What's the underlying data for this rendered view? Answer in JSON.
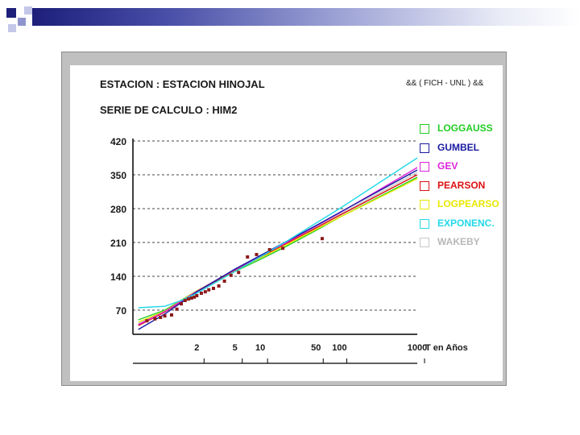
{
  "header": {
    "station": "ESTACION : ESTACION HINOJAL",
    "series": "SERIE DE CALCULO : HIM2",
    "credit": "&& ( FICH - UNL ) &&"
  },
  "colors": {
    "LOGGAUSS": "#22cc22",
    "GUMBEL": "#1a1aa0",
    "GEV": "#dd22dd",
    "PEARSON": "#dd1111",
    "LOGPEARSON": "#e8e800",
    "EXPONENC": "#22d8e8",
    "WAKEBY": "#c8c8c8",
    "points": "#8b1a1a"
  },
  "chart_data": {
    "type": "line",
    "xlabel": "T en Años",
    "ylabel": "",
    "x_scale": "gumbel-probability",
    "xlim": [
      1.01,
      1000
    ],
    "ylim": [
      20,
      420
    ],
    "yticks": [
      70,
      140,
      210,
      280,
      350,
      420
    ],
    "xticks": [
      2,
      5,
      10,
      50,
      100,
      1000
    ],
    "grid": "dashed-horizontal",
    "legend_position": "right",
    "series": [
      {
        "name": "LOGGAUSS",
        "x": [
          1.02,
          1.2,
          2,
          5,
          10,
          20,
          50,
          100,
          1000
        ],
        "values": [
          50,
          70,
          110,
          150,
          175,
          200,
          235,
          262,
          345
        ]
      },
      {
        "name": "GUMBEL",
        "x": [
          1.02,
          1.2,
          2,
          5,
          10,
          20,
          50,
          100,
          1000
        ],
        "values": [
          30,
          62,
          108,
          155,
          183,
          210,
          245,
          272,
          360
        ]
      },
      {
        "name": "GEV",
        "x": [
          1.02,
          1.2,
          2,
          5,
          10,
          20,
          50,
          100,
          1000
        ],
        "values": [
          40,
          67,
          109,
          154,
          182,
          208,
          244,
          271,
          365
        ]
      },
      {
        "name": "PEARSON",
        "x": [
          1.02,
          1.2,
          2,
          5,
          10,
          20,
          50,
          100,
          1000
        ],
        "values": [
          38,
          66,
          108,
          153,
          180,
          206,
          240,
          266,
          350
        ]
      },
      {
        "name": "LOGPEARSON",
        "x": [
          1.02,
          1.2,
          2,
          5,
          10,
          20,
          50,
          100,
          1000
        ],
        "values": [
          45,
          68,
          110,
          152,
          178,
          203,
          237,
          262,
          342
        ]
      },
      {
        "name": "EXPONENC.",
        "x": [
          1.02,
          1.2,
          1.5,
          2,
          5,
          10,
          20,
          50,
          100,
          1000
        ],
        "values": [
          75,
          78,
          90,
          105,
          150,
          180,
          210,
          250,
          280,
          385
        ]
      },
      {
        "name": "WAKEBY",
        "x": [
          1.02,
          1.2,
          2,
          5,
          10,
          20,
          50,
          100,
          1000
        ],
        "values": [
          42,
          67,
          109,
          153,
          181,
          207,
          242,
          268,
          355
        ]
      }
    ],
    "observed": {
      "x": [
        1.05,
        1.1,
        1.15,
        1.2,
        1.3,
        1.4,
        1.5,
        1.6,
        1.7,
        1.8,
        1.9,
        2.0,
        2.2,
        2.4,
        2.6,
        2.9,
        3.3,
        3.8,
        4.5,
        5.5,
        7,
        9,
        13,
        19,
        60
      ],
      "values": [
        48,
        52,
        55,
        58,
        60,
        72,
        83,
        90,
        93,
        95,
        97,
        100,
        105,
        108,
        112,
        115,
        120,
        130,
        142,
        148,
        180,
        185,
        195,
        198,
        218
      ]
    }
  },
  "legend": [
    {
      "key": "LOGGAUSS",
      "label": "LOGGAUSS"
    },
    {
      "key": "GUMBEL",
      "label": "GUMBEL"
    },
    {
      "key": "GEV",
      "label": "GEV"
    },
    {
      "key": "PEARSON",
      "label": "PEARSON"
    },
    {
      "key": "LOGPEARSON",
      "label": "LOGPEARSO"
    },
    {
      "key": "EXPONENC",
      "label": "EXPONENC."
    },
    {
      "key": "WAKEBY",
      "label": "WAKEBY"
    }
  ]
}
